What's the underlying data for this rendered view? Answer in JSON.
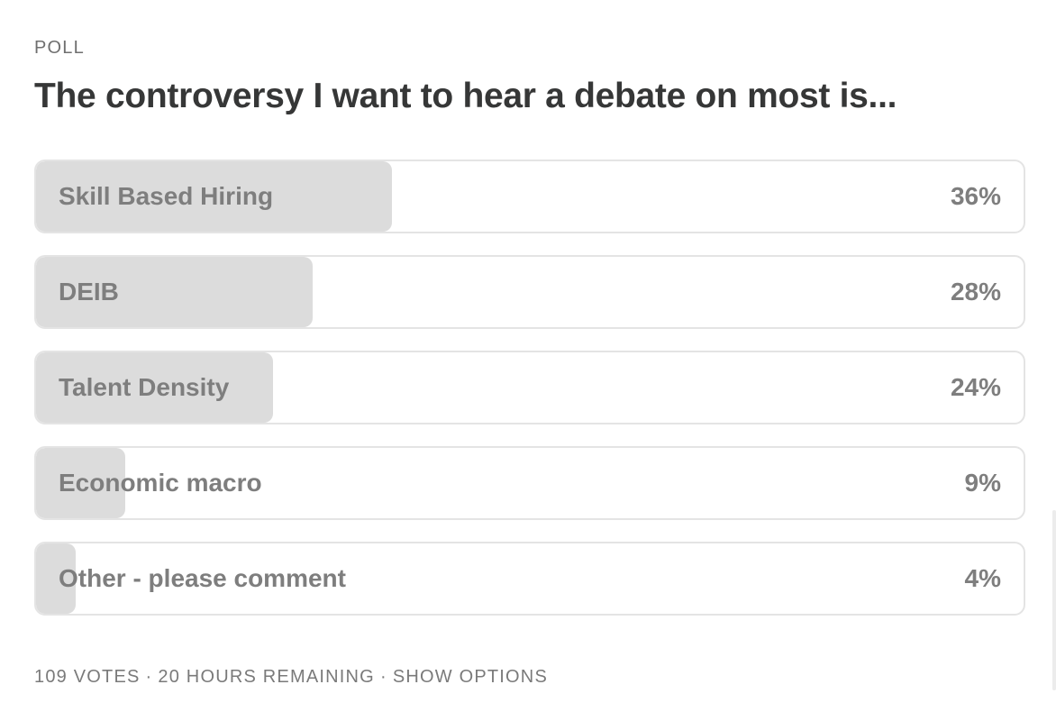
{
  "poll": {
    "label": "POLL",
    "question": "The controversy I want to hear a debate on most is...",
    "options": [
      {
        "label": "Skill Based Hiring",
        "percent_text": "36%",
        "percent": 36
      },
      {
        "label": "DEIB",
        "percent_text": "28%",
        "percent": 28
      },
      {
        "label": "Talent Density",
        "percent_text": "24%",
        "percent": 24
      },
      {
        "label": "Economic macro",
        "percent_text": "9%",
        "percent": 9
      },
      {
        "label": "Other - please comment",
        "percent_text": "4%",
        "percent": 4
      }
    ],
    "footer": {
      "votes": "109 VOTES",
      "separator": "·",
      "remaining": "20 HOURS REMAINING",
      "show_options": "SHOW OPTIONS"
    }
  },
  "colors": {
    "fill": "#dcdcdc",
    "border": "#e4e4e4",
    "text_muted": "#7e7e7e",
    "heading": "#363737"
  }
}
